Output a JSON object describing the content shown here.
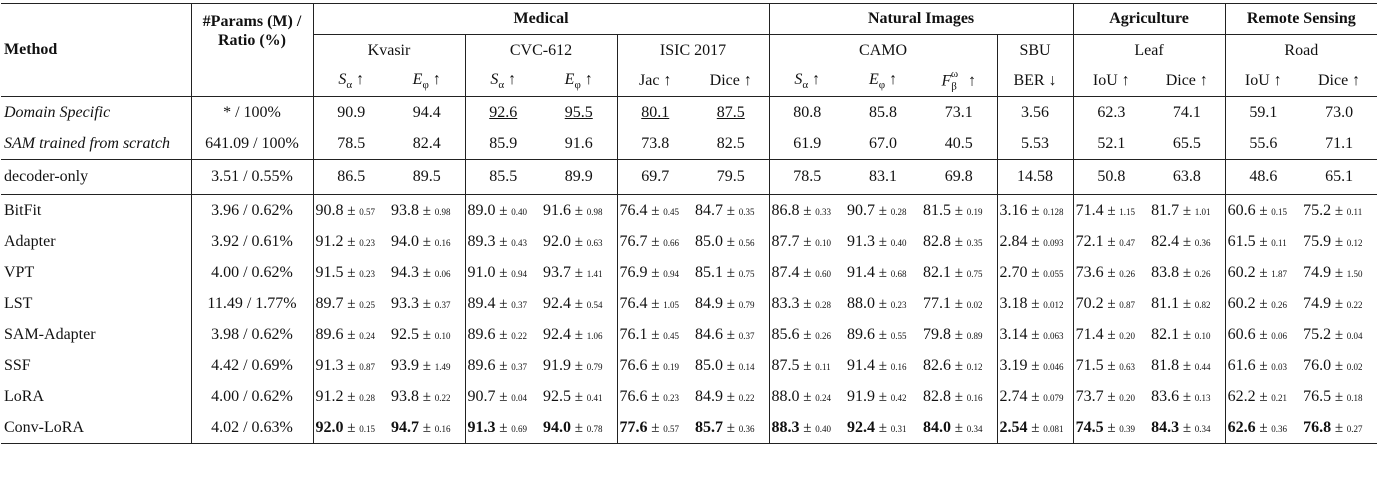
{
  "header": {
    "method": "Method",
    "params_line1": "#Params (M) /",
    "params_line2": "Ratio (%)",
    "groups": [
      "Medical",
      "Natural Images",
      "Agriculture",
      "Remote Sensing"
    ],
    "datasets": [
      "Kvasir",
      "CVC-612",
      "ISIC 2017",
      "CAMO",
      "SBU",
      "Leaf",
      "Road"
    ],
    "metrics": [
      "Sα ↑",
      "Eφ ↑",
      "Sα ↑",
      "Eφ ↑",
      "Jac ↑",
      "Dice ↑",
      "Sα ↑",
      "Eφ ↑",
      "Fβω ↑",
      "BER ↓",
      "IoU ↑",
      "Dice ↑",
      "IoU ↑",
      "Dice ↑"
    ]
  },
  "baselines": [
    {
      "method": "Domain Specific",
      "params": "* / 100%",
      "values": [
        "90.9",
        "94.4",
        "92.6",
        "95.5",
        "80.1",
        "87.5",
        "80.8",
        "85.8",
        "73.1",
        "3.56",
        "62.3",
        "74.1",
        "59.1",
        "73.0"
      ]
    },
    {
      "method": "SAM trained from scratch",
      "params": "641.09 / 100%",
      "values": [
        "78.5",
        "82.4",
        "85.9",
        "91.6",
        "73.8",
        "82.5",
        "61.9",
        "67.0",
        "40.5",
        "5.53",
        "52.1",
        "65.5",
        "55.6",
        "71.1"
      ]
    }
  ],
  "decoder": {
    "method": "decoder-only",
    "params": "3.51 / 0.55%",
    "values": [
      "86.5",
      "89.5",
      "85.5",
      "89.9",
      "69.7",
      "79.5",
      "78.5",
      "83.1",
      "69.8",
      "14.58",
      "50.8",
      "63.8",
      "48.6",
      "65.1"
    ]
  },
  "peft": [
    {
      "method": "BitFit",
      "params": "3.96 / 0.62%",
      "values": [
        [
          "90.8",
          "0.57"
        ],
        [
          "93.8",
          "0.98"
        ],
        [
          "89.0",
          "0.40"
        ],
        [
          "91.6",
          "0.98"
        ],
        [
          "76.4",
          "0.45"
        ],
        [
          "84.7",
          "0.35"
        ],
        [
          "86.8",
          "0.33"
        ],
        [
          "90.7",
          "0.28"
        ],
        [
          "81.5",
          "0.19"
        ],
        [
          "3.16",
          "0.128"
        ],
        [
          "71.4",
          "1.15"
        ],
        [
          "81.7",
          "1.01"
        ],
        [
          "60.6",
          "0.15"
        ],
        [
          "75.2",
          "0.11"
        ]
      ]
    },
    {
      "method": "Adapter",
      "params": "3.92 / 0.61%",
      "values": [
        [
          "91.2",
          "0.23"
        ],
        [
          "94.0",
          "0.16"
        ],
        [
          "89.3",
          "0.43"
        ],
        [
          "92.0",
          "0.63"
        ],
        [
          "76.7",
          "0.66"
        ],
        [
          "85.0",
          "0.56"
        ],
        [
          "87.7",
          "0.10"
        ],
        [
          "91.3",
          "0.40"
        ],
        [
          "82.8",
          "0.35"
        ],
        [
          "2.84",
          "0.093"
        ],
        [
          "72.1",
          "0.47"
        ],
        [
          "82.4",
          "0.36"
        ],
        [
          "61.5",
          "0.11"
        ],
        [
          "75.9",
          "0.12"
        ]
      ]
    },
    {
      "method": "VPT",
      "params": "4.00 / 0.62%",
      "values": [
        [
          "91.5",
          "0.23"
        ],
        [
          "94.3",
          "0.06"
        ],
        [
          "91.0",
          "0.94"
        ],
        [
          "93.7",
          "1.41"
        ],
        [
          "76.9",
          "0.94"
        ],
        [
          "85.1",
          "0.75"
        ],
        [
          "87.4",
          "0.60"
        ],
        [
          "91.4",
          "0.68"
        ],
        [
          "82.1",
          "0.75"
        ],
        [
          "2.70",
          "0.055"
        ],
        [
          "73.6",
          "0.26"
        ],
        [
          "83.8",
          "0.26"
        ],
        [
          "60.2",
          "1.87"
        ],
        [
          "74.9",
          "1.50"
        ]
      ]
    },
    {
      "method": "LST",
      "params": "11.49 / 1.77%",
      "values": [
        [
          "89.7",
          "0.25"
        ],
        [
          "93.3",
          "0.37"
        ],
        [
          "89.4",
          "0.37"
        ],
        [
          "92.4",
          "0.54"
        ],
        [
          "76.4",
          "1.05"
        ],
        [
          "84.9",
          "0.79"
        ],
        [
          "83.3",
          "0.28"
        ],
        [
          "88.0",
          "0.23"
        ],
        [
          "77.1",
          "0.02"
        ],
        [
          "3.18",
          "0.012"
        ],
        [
          "70.2",
          "0.87"
        ],
        [
          "81.1",
          "0.82"
        ],
        [
          "60.2",
          "0.26"
        ],
        [
          "74.9",
          "0.22"
        ]
      ]
    },
    {
      "method": "SAM-Adapter",
      "params": "3.98 / 0.62%",
      "values": [
        [
          "89.6",
          "0.24"
        ],
        [
          "92.5",
          "0.10"
        ],
        [
          "89.6",
          "0.22"
        ],
        [
          "92.4",
          "1.06"
        ],
        [
          "76.1",
          "0.45"
        ],
        [
          "84.6",
          "0.37"
        ],
        [
          "85.6",
          "0.26"
        ],
        [
          "89.6",
          "0.55"
        ],
        [
          "79.8",
          "0.89"
        ],
        [
          "3.14",
          "0.063"
        ],
        [
          "71.4",
          "0.20"
        ],
        [
          "82.1",
          "0.10"
        ],
        [
          "60.6",
          "0.06"
        ],
        [
          "75.2",
          "0.04"
        ]
      ]
    },
    {
      "method": "SSF",
      "params": "4.42 / 0.69%",
      "values": [
        [
          "91.3",
          "0.87"
        ],
        [
          "93.9",
          "1.49"
        ],
        [
          "89.6",
          "0.37"
        ],
        [
          "91.9",
          "0.79"
        ],
        [
          "76.6",
          "0.19"
        ],
        [
          "85.0",
          "0.14"
        ],
        [
          "87.5",
          "0.11"
        ],
        [
          "91.4",
          "0.16"
        ],
        [
          "82.6",
          "0.12"
        ],
        [
          "3.19",
          "0.046"
        ],
        [
          "71.5",
          "0.63"
        ],
        [
          "81.8",
          "0.44"
        ],
        [
          "61.6",
          "0.03"
        ],
        [
          "76.0",
          "0.02"
        ]
      ]
    },
    {
      "method": "LoRA",
      "params": "4.00 / 0.62%",
      "values": [
        [
          "91.2",
          "0.28"
        ],
        [
          "93.8",
          "0.22"
        ],
        [
          "90.7",
          "0.04"
        ],
        [
          "92.5",
          "0.41"
        ],
        [
          "76.6",
          "0.23"
        ],
        [
          "84.9",
          "0.22"
        ],
        [
          "88.0",
          "0.24"
        ],
        [
          "91.9",
          "0.42"
        ],
        [
          "82.8",
          "0.16"
        ],
        [
          "2.74",
          "0.079"
        ],
        [
          "73.7",
          "0.20"
        ],
        [
          "83.6",
          "0.13"
        ],
        [
          "62.2",
          "0.21"
        ],
        [
          "76.5",
          "0.18"
        ]
      ]
    },
    {
      "method": "Conv-LoRA",
      "params": "4.02 / 0.63%",
      "values": [
        [
          "92.0",
          "0.15"
        ],
        [
          "94.7",
          "0.16"
        ],
        [
          "91.3",
          "0.69"
        ],
        [
          "94.0",
          "0.78"
        ],
        [
          "77.6",
          "0.57"
        ],
        [
          "85.7",
          "0.36"
        ],
        [
          "88.3",
          "0.40"
        ],
        [
          "92.4",
          "0.31"
        ],
        [
          "84.0",
          "0.34"
        ],
        [
          "2.54",
          "0.081"
        ],
        [
          "74.5",
          "0.39"
        ],
        [
          "84.3",
          "0.34"
        ],
        [
          "62.6",
          "0.36"
        ],
        [
          "76.8",
          "0.27"
        ]
      ]
    }
  ],
  "pm_symbol": "±"
}
